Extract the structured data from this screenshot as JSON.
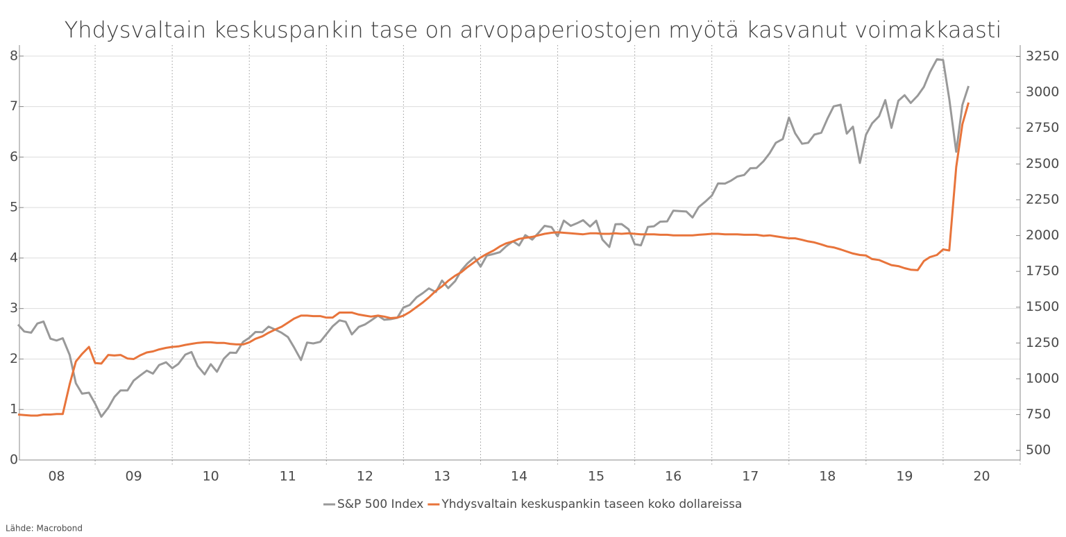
{
  "chart_data": {
    "type": "line",
    "title": "Yhdysvaltain keskuspankin tase on arvopaperiostojen myötä kasvanut voimakkaasti",
    "source": "Lähde: Macrobond",
    "x": [
      2008.0,
      2008.08,
      2008.17,
      2008.25,
      2008.33,
      2008.42,
      2008.5,
      2008.58,
      2008.67,
      2008.75,
      2008.83,
      2008.92,
      2009.0,
      2009.08,
      2009.17,
      2009.25,
      2009.33,
      2009.42,
      2009.5,
      2009.58,
      2009.67,
      2009.75,
      2009.83,
      2009.92,
      2010.0,
      2010.08,
      2010.17,
      2010.25,
      2010.33,
      2010.42,
      2010.5,
      2010.58,
      2010.67,
      2010.75,
      2010.83,
      2010.92,
      2011.0,
      2011.08,
      2011.17,
      2011.25,
      2011.33,
      2011.42,
      2011.5,
      2011.58,
      2011.67,
      2011.75,
      2011.83,
      2011.92,
      2012.0,
      2012.08,
      2012.17,
      2012.25,
      2012.33,
      2012.42,
      2012.5,
      2012.58,
      2012.67,
      2012.75,
      2012.83,
      2012.92,
      2013.0,
      2013.08,
      2013.17,
      2013.25,
      2013.33,
      2013.42,
      2013.5,
      2013.58,
      2013.67,
      2013.75,
      2013.83,
      2013.92,
      2014.0,
      2014.08,
      2014.17,
      2014.25,
      2014.33,
      2014.42,
      2014.5,
      2014.58,
      2014.67,
      2014.75,
      2014.83,
      2014.92,
      2015.0,
      2015.08,
      2015.17,
      2015.25,
      2015.33,
      2015.42,
      2015.5,
      2015.58,
      2015.67,
      2015.75,
      2015.83,
      2015.92,
      2016.0,
      2016.08,
      2016.17,
      2016.25,
      2016.33,
      2016.42,
      2016.5,
      2016.58,
      2016.67,
      2016.75,
      2016.83,
      2016.92,
      2017.0,
      2017.08,
      2017.17,
      2017.25,
      2017.33,
      2017.42,
      2017.5,
      2017.58,
      2017.67,
      2017.75,
      2017.83,
      2017.92,
      2018.0,
      2018.08,
      2018.17,
      2018.25,
      2018.33,
      2018.42,
      2018.5,
      2018.58,
      2018.67,
      2018.75,
      2018.83,
      2018.92,
      2019.0,
      2019.08,
      2019.17,
      2019.25,
      2019.33,
      2019.42,
      2019.5,
      2019.58,
      2019.67,
      2019.75,
      2019.83,
      2019.92,
      2020.0,
      2020.08,
      2020.17,
      2020.25,
      2020.33
    ],
    "series": [
      {
        "name": "S&P 500 Index",
        "color": "#999999",
        "axis": "y2",
        "values": [
          1378,
          1330,
          1322,
          1386,
          1400,
          1280,
          1267,
          1283,
          1166,
          969,
          896,
          903,
          826,
          735,
          798,
          873,
          919,
          919,
          987,
          1021,
          1057,
          1036,
          1096,
          1115,
          1074,
          1104,
          1169,
          1187,
          1089,
          1031,
          1102,
          1049,
          1141,
          1183,
          1181,
          1258,
          1286,
          1327,
          1326,
          1364,
          1345,
          1321,
          1292,
          1219,
          1131,
          1253,
          1247,
          1258,
          1312,
          1366,
          1408,
          1398,
          1310,
          1362,
          1379,
          1407,
          1441,
          1412,
          1416,
          1426,
          1498,
          1515,
          1569,
          1598,
          1631,
          1606,
          1686,
          1633,
          1682,
          1757,
          1806,
          1848,
          1783,
          1859,
          1872,
          1884,
          1924,
          1960,
          1931,
          2003,
          1972,
          2018,
          2068,
          2059,
          1995,
          2105,
          2068,
          2086,
          2107,
          2063,
          2104,
          1972,
          1920,
          2079,
          2080,
          2044,
          1940,
          1932,
          2060,
          2065,
          2097,
          2099,
          2174,
          2171,
          2168,
          2126,
          2199,
          2239,
          2279,
          2364,
          2363,
          2384,
          2412,
          2423,
          2470,
          2472,
          2519,
          2575,
          2648,
          2674,
          2824,
          2714,
          2641,
          2648,
          2705,
          2718,
          2816,
          2902,
          2914,
          2712,
          2760,
          2507,
          2704,
          2784,
          2834,
          2946,
          2752,
          2942,
          2980,
          2926,
          2977,
          3038,
          3141,
          3231,
          3226,
          2954,
          2585,
          2912,
          3044
        ]
      },
      {
        "name": "Yhdysvaltain keskuspankin taseen koko dollareissa",
        "color": "#e8743b",
        "values": [
          0.9,
          0.89,
          0.88,
          0.88,
          0.9,
          0.9,
          0.91,
          0.91,
          1.5,
          1.95,
          2.1,
          2.24,
          1.92,
          1.91,
          2.08,
          2.07,
          2.08,
          2.01,
          2.0,
          2.07,
          2.13,
          2.15,
          2.19,
          2.22,
          2.24,
          2.25,
          2.28,
          2.3,
          2.32,
          2.33,
          2.33,
          2.32,
          2.32,
          2.3,
          2.29,
          2.29,
          2.33,
          2.4,
          2.45,
          2.52,
          2.58,
          2.64,
          2.72,
          2.8,
          2.86,
          2.86,
          2.85,
          2.85,
          2.82,
          2.82,
          2.92,
          2.92,
          2.92,
          2.88,
          2.86,
          2.84,
          2.86,
          2.84,
          2.81,
          2.82,
          2.86,
          2.93,
          3.03,
          3.12,
          3.22,
          3.35,
          3.44,
          3.55,
          3.65,
          3.72,
          3.82,
          3.92,
          4.01,
          4.08,
          4.15,
          4.23,
          4.29,
          4.33,
          4.38,
          4.4,
          4.42,
          4.45,
          4.48,
          4.5,
          4.51,
          4.5,
          4.49,
          4.48,
          4.47,
          4.49,
          4.49,
          4.48,
          4.48,
          4.49,
          4.48,
          4.49,
          4.48,
          4.47,
          4.47,
          4.47,
          4.46,
          4.46,
          4.45,
          4.45,
          4.45,
          4.45,
          4.46,
          4.47,
          4.48,
          4.48,
          4.47,
          4.47,
          4.47,
          4.46,
          4.46,
          4.46,
          4.44,
          4.45,
          4.43,
          4.41,
          4.39,
          4.39,
          4.36,
          4.33,
          4.31,
          4.27,
          4.23,
          4.21,
          4.17,
          4.13,
          4.09,
          4.06,
          4.05,
          3.98,
          3.96,
          3.91,
          3.86,
          3.84,
          3.8,
          3.77,
          3.76,
          3.94,
          4.02,
          4.06,
          4.17,
          4.15,
          5.8,
          6.65,
          7.08
        ]
      }
    ],
    "xlim": [
      2008,
      2021
    ],
    "xticks": [
      {
        "value": 2008.5,
        "label": "08"
      },
      {
        "value": 2009.5,
        "label": "09"
      },
      {
        "value": 2010.5,
        "label": "10"
      },
      {
        "value": 2011.5,
        "label": "11"
      },
      {
        "value": 2012.5,
        "label": "12"
      },
      {
        "value": 2013.5,
        "label": "13"
      },
      {
        "value": 2014.5,
        "label": "14"
      },
      {
        "value": 2015.5,
        "label": "15"
      },
      {
        "value": 2016.5,
        "label": "16"
      },
      {
        "value": 2017.5,
        "label": "17"
      },
      {
        "value": 2018.5,
        "label": "18"
      },
      {
        "value": 2019.5,
        "label": "19"
      },
      {
        "value": 2020.5,
        "label": "20"
      }
    ],
    "xminorticks": [
      2009,
      2010,
      2011,
      2012,
      2013,
      2014,
      2015,
      2016,
      2017,
      2018,
      2019,
      2020,
      2021
    ],
    "ylim": [
      0,
      8.3
    ],
    "yticks": [
      0,
      1,
      2,
      3,
      4,
      5,
      6,
      7,
      8
    ],
    "y2lim": [
      433,
      3359
    ],
    "y2ticks": [
      500,
      750,
      1000,
      1250,
      1500,
      1750,
      2000,
      2250,
      2500,
      2750,
      3000,
      3250
    ],
    "grid": true,
    "legend": "bottom"
  }
}
